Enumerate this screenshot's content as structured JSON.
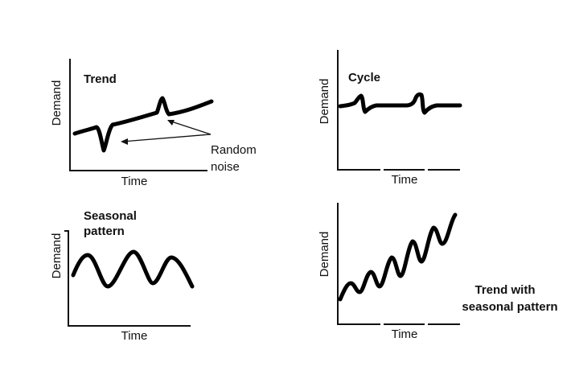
{
  "panels": {
    "trend": {
      "title": "Trend",
      "ylabel": "Demand",
      "xlabel": "Time",
      "annotation_line1": "Random",
      "annotation_line2": "noise"
    },
    "cycle": {
      "title": "Cycle",
      "ylabel": "Demand",
      "xlabel": "Time"
    },
    "seasonal": {
      "title_line1": "Seasonal",
      "title_line2": "pattern",
      "ylabel": "Demand",
      "xlabel": "Time"
    },
    "trend_seasonal": {
      "title_line1": "Trend  with",
      "title_line2": "seasonal pattern",
      "ylabel": "Demand",
      "xlabel": "Time"
    }
  },
  "colors": {
    "line": "#000000",
    "background": "#ffffff"
  }
}
